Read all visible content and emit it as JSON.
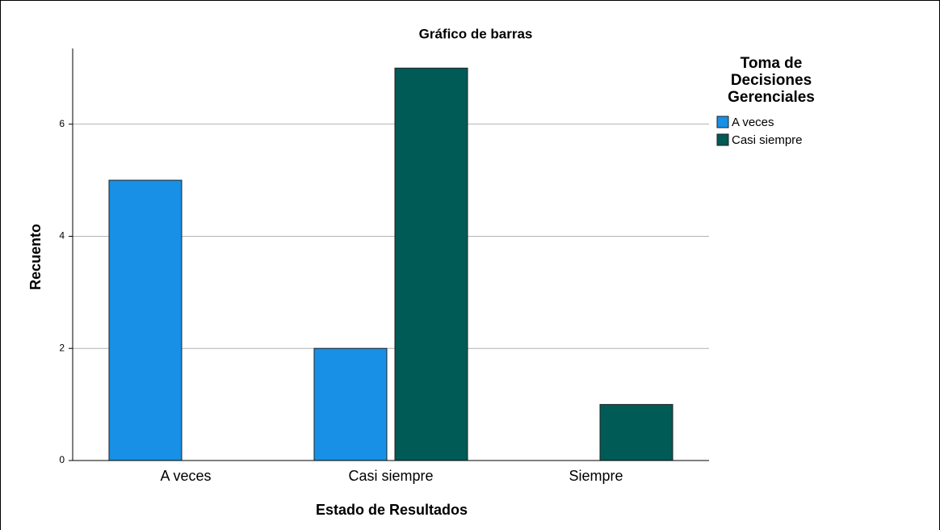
{
  "chart_data": {
    "type": "bar",
    "title": "Gráfico de barras",
    "x_label": "Estado de Resultados",
    "y_label": "Recuento",
    "legend_title": "Toma de Decisiones Gerenciales",
    "legend_position": "upper right outside",
    "categories": [
      "A veces",
      "Casi siempre",
      "Siempre"
    ],
    "series": [
      {
        "name": "A veces",
        "color": "#1790e5",
        "values": [
          5,
          2,
          null
        ]
      },
      {
        "name": "Casi siempre",
        "color": "#005a56",
        "values": [
          null,
          7,
          1
        ]
      }
    ],
    "ylim": [
      0,
      7.35
    ],
    "yticks": [
      0,
      2,
      4,
      6
    ],
    "grid": true
  }
}
